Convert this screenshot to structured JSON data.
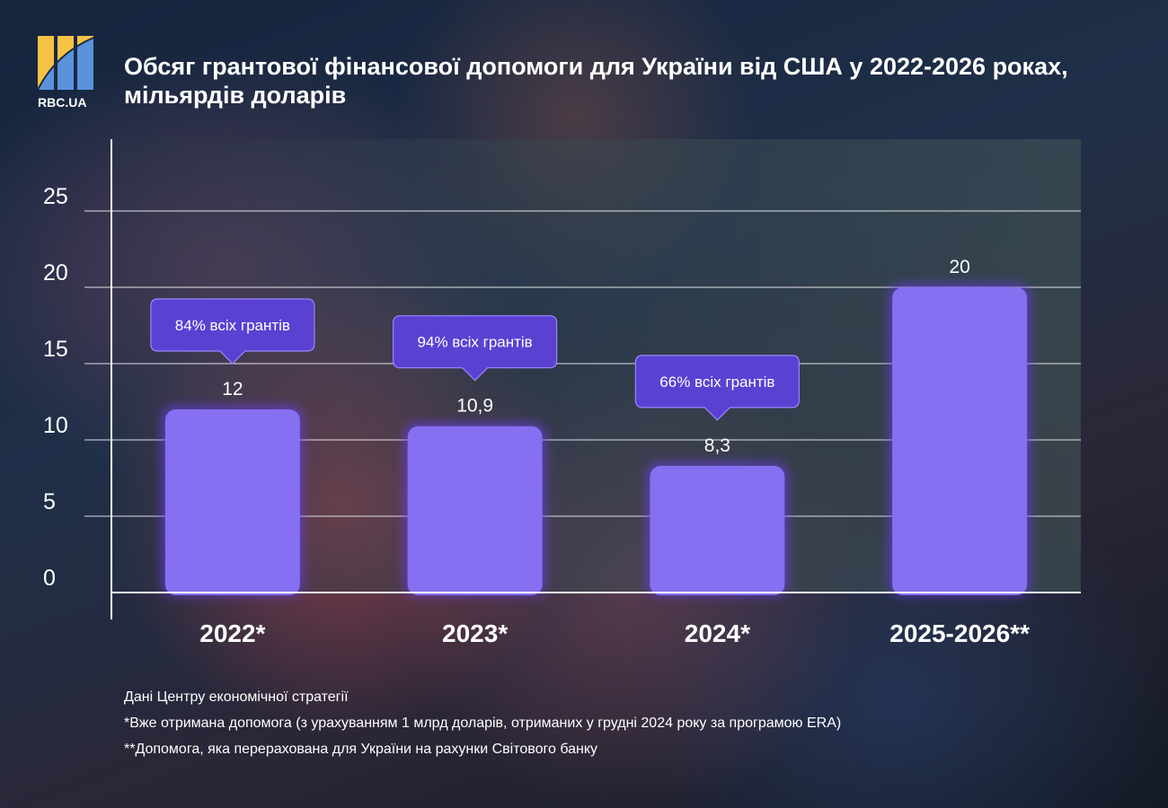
{
  "brand": {
    "logo_text": "RBC.UA"
  },
  "chart_data": {
    "type": "bar",
    "title": "Обсяг грантової фінансової допомоги для України від США у 2022-2026 роках, мільярдів доларів",
    "categories": [
      "2022*",
      "2023*",
      "2024*",
      "2025-2026**"
    ],
    "values": [
      12,
      10.9,
      8.3,
      20
    ],
    "value_labels": [
      "12",
      "10,9",
      "8,3",
      "20"
    ],
    "callouts": [
      "84% всіх грантів",
      "94% всіх грантів",
      "66% всіх грантів",
      ""
    ],
    "yticks": [
      0,
      5,
      10,
      15,
      20,
      25
    ],
    "ylim": [
      0,
      29
    ],
    "grid": true,
    "bar_color": "#8670f1",
    "callout_color": "#5b41d2"
  },
  "notes": [
    "Дані Центру економічної стратегії",
    "*Вже отримана допомога (з урахуванням 1 млрд доларів, отриманих у грудні 2024 року за програмою ERA)",
    "**Допомога, яка перерахована для України на рахунки Світового банку"
  ]
}
